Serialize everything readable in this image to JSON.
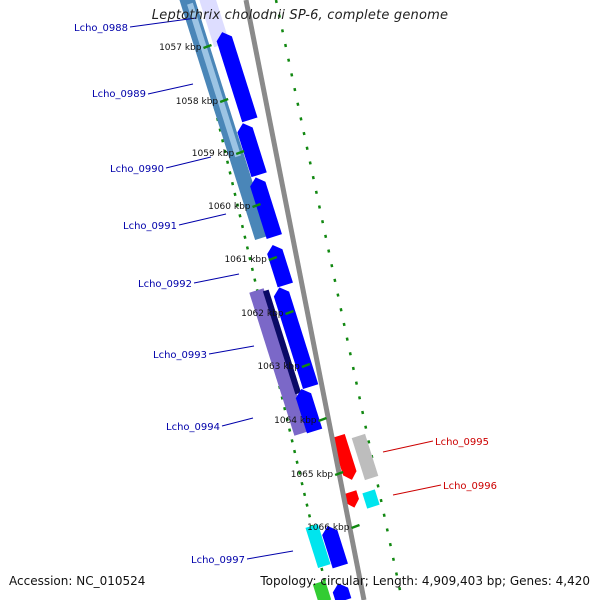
{
  "title": "Leptothrix cholodnii SP-6, complete genome",
  "footer": {
    "accession": "Accession: NC_010524",
    "summary": "Topology: circular; Length: 4,909,403 bp; Genes: 4,420"
  },
  "colors": {
    "forward_cds": "#0000ff",
    "reverse_label": "#cc0000",
    "forward_label": "#0000aa",
    "tick": "#118811",
    "backbone": "#8a8a8a",
    "steel_cog": "#4a86b8",
    "purple_cog": "#7b68c8",
    "dark_navy": "#0a0a66",
    "cyan": "#00e5ee",
    "red": "#ff0000",
    "grey_feature": "#bdbdbd",
    "green": "#33cc33"
  },
  "ruler": [
    {
      "label": "1057 kbp"
    },
    {
      "label": "1058 kbp"
    },
    {
      "label": "1059 kbp"
    },
    {
      "label": "1060 kbp"
    },
    {
      "label": "1061 kbp"
    },
    {
      "label": "1062 kbp"
    },
    {
      "label": "1063 kbp"
    },
    {
      "label": "1064 kbp"
    },
    {
      "label": "1065 kbp"
    },
    {
      "label": "1066 kbp"
    }
  ],
  "genes": [
    {
      "name": "Lcho_0988",
      "strand": "forward"
    },
    {
      "name": "Lcho_0989",
      "strand": "forward"
    },
    {
      "name": "Lcho_0990",
      "strand": "forward"
    },
    {
      "name": "Lcho_0991",
      "strand": "forward"
    },
    {
      "name": "Lcho_0992",
      "strand": "forward"
    },
    {
      "name": "Lcho_0993",
      "strand": "forward"
    },
    {
      "name": "Lcho_0994",
      "strand": "forward"
    },
    {
      "name": "Lcho_0995",
      "strand": "reverse"
    },
    {
      "name": "Lcho_0996",
      "strand": "reverse"
    },
    {
      "name": "Lcho_0997",
      "strand": "forward"
    }
  ]
}
